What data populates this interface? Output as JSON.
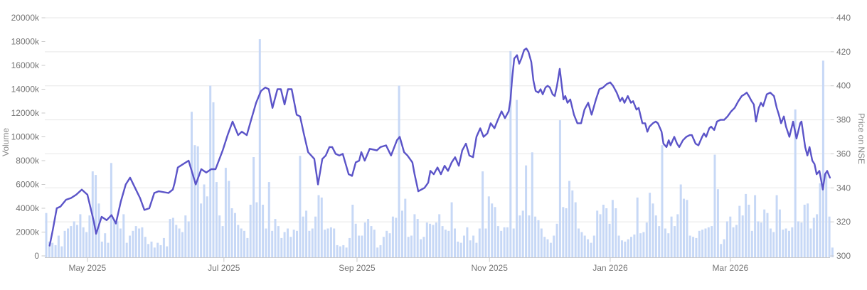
{
  "chart": {
    "colors": {
      "background": "#ffffff",
      "volume_bar": "#c7d8f6",
      "price_line": "#5b54c8",
      "grid": "#e7e7e7",
      "axis_line": "#c9c9c9",
      "tick_text": "#757575",
      "axis_title_text": "#8a8a8a"
    },
    "left_axis": {
      "title": "Volume",
      "tick_labels": [
        "0",
        "2000k",
        "4000k",
        "6000k",
        "8000k",
        "10000k",
        "12000k",
        "14000k",
        "16000k",
        "18000k",
        "20000k"
      ],
      "tick_values": [
        0,
        2000,
        4000,
        6000,
        8000,
        10000,
        12000,
        14000,
        16000,
        18000,
        20000
      ],
      "min": 0,
      "max": 20000
    },
    "right_axis": {
      "title": "Price on NSE",
      "tick_labels": [
        "300",
        "320",
        "340",
        "360",
        "380",
        "400",
        "420",
        "440"
      ],
      "tick_values": [
        300,
        320,
        340,
        360,
        380,
        400,
        420,
        440
      ],
      "min": 300,
      "max": 440
    },
    "x_axis": {
      "tick_labels": [
        "May 2025",
        "Jul 2025",
        "Sep 2025",
        "Nov 2025",
        "Jan 2026",
        "Mar 2026"
      ],
      "tick_positions": [
        13.3,
        57.4,
        100.4,
        143.2,
        182.2,
        221.0
      ]
    }
  },
  "chart_data": {
    "type": "bar+line",
    "x_unit": "trading-day index",
    "x_range_labels": [
      "May 2025",
      "Jul 2025",
      "Sep 2025",
      "Nov 2025",
      "Jan 2026",
      "Mar 2026"
    ],
    "series": [
      {
        "name": "Volume",
        "type": "bar",
        "axis": "left",
        "unit": "k",
        "values": [
          3600,
          1200,
          1100,
          900,
          1700,
          800,
          2100,
          2300,
          2500,
          2900,
          2600,
          3500,
          2400,
          2000,
          3400,
          7100,
          6800,
          4400,
          1200,
          1900,
          1100,
          7800,
          3100,
          2900,
          2300,
          3500,
          1100,
          1700,
          2100,
          2500,
          2300,
          2400,
          1600,
          1000,
          1200,
          700,
          1100,
          900,
          1500,
          800,
          3100,
          3200,
          2600,
          2300,
          2000,
          3400,
          2900,
          12100,
          9300,
          9200,
          4400,
          6000,
          5000,
          14300,
          12900,
          6200,
          3400,
          2500,
          7400,
          6300,
          4000,
          3600,
          2600,
          2300,
          2100,
          1500,
          4300,
          8300,
          4500,
          18200,
          4300,
          2300,
          6200,
          2100,
          3100,
          2500,
          1500,
          2000,
          2300,
          1600,
          2200,
          2100,
          8400,
          3300,
          3800,
          2100,
          2300,
          3300,
          5100,
          4900,
          2200,
          2300,
          2400,
          2300,
          900,
          800,
          900,
          700,
          1500,
          4300,
          2700,
          1700,
          1700,
          2800,
          3100,
          2500,
          2200,
          700,
          900,
          1600,
          2100,
          1900,
          3300,
          3200,
          14300,
          3800,
          4800,
          1600,
          1700,
          3500,
          3100,
          1400,
          1600,
          2800,
          2700,
          2600,
          2800,
          3500,
          2500,
          2200,
          2100,
          4500,
          2300,
          1200,
          1100,
          1700,
          2400,
          1300,
          1700,
          1100,
          2300,
          7100,
          2300,
          5000,
          4400,
          4100,
          2500,
          2100,
          2400,
          2400,
          17200,
          2300,
          13100,
          3400,
          3800,
          7600,
          3400,
          8700,
          3300,
          3000,
          2300,
          1600,
          1400,
          1100,
          1700,
          2700,
          11400,
          4100,
          4000,
          6300,
          5500,
          4500,
          2300,
          2000,
          1700,
          1400,
          1100,
          1700,
          3800,
          3500,
          4300,
          4000,
          2700,
          4700,
          4000,
          1700,
          1300,
          1200,
          1400,
          1600,
          1800,
          4900,
          1900,
          2000,
          2800,
          5300,
          4400,
          3400,
          2500,
          9300,
          2300,
          1900,
          3300,
          2500,
          3500,
          6000,
          4800,
          4700,
          1700,
          1600,
          1500,
          2100,
          2200,
          2300,
          2400,
          2500,
          8500,
          5600,
          1000,
          1400,
          2900,
          3300,
          2400,
          2600,
          4200,
          3400,
          5200,
          4300,
          2100,
          5100,
          2900,
          2800,
          3900,
          3600,
          2300,
          2000,
          5100,
          3900,
          2200,
          2300,
          2100,
          2400,
          12300,
          2900,
          2800,
          4300,
          4400,
          2300,
          3200,
          3500,
          6100,
          16400,
          6900,
          3300,
          700
        ]
      },
      {
        "name": "Price on NSE",
        "type": "line",
        "axis": "right",
        "points": [
          [
            1.1,
            306
          ],
          [
            2.1,
            315
          ],
          [
            3.4,
            328
          ],
          [
            4.6,
            329
          ],
          [
            6.4,
            333
          ],
          [
            8.0,
            334
          ],
          [
            9.7,
            336
          ],
          [
            11.5,
            339
          ],
          [
            13.3,
            336
          ],
          [
            15.4,
            320
          ],
          [
            16.1,
            313
          ],
          [
            17.9,
            323
          ],
          [
            19.5,
            321
          ],
          [
            21.1,
            324
          ],
          [
            22.5,
            319
          ],
          [
            24.1,
            332
          ],
          [
            25.7,
            342
          ],
          [
            27.1,
            346
          ],
          [
            28.7,
            340
          ],
          [
            30.3,
            334
          ],
          [
            31.7,
            327
          ],
          [
            33.3,
            328
          ],
          [
            34.9,
            337
          ],
          [
            36.3,
            338
          ],
          [
            39.5,
            337
          ],
          [
            40.9,
            339
          ],
          [
            41.5,
            343
          ],
          [
            42.5,
            352
          ],
          [
            46.0,
            356
          ],
          [
            48.3,
            342
          ],
          [
            50.1,
            351
          ],
          [
            51.7,
            349
          ],
          [
            53.3,
            351
          ],
          [
            54.7,
            351
          ],
          [
            57.0,
            362
          ],
          [
            58.6,
            371
          ],
          [
            60.2,
            379
          ],
          [
            62.0,
            371
          ],
          [
            63.2,
            373
          ],
          [
            64.8,
            371
          ],
          [
            66.2,
            380
          ],
          [
            67.8,
            390
          ],
          [
            69.4,
            397
          ],
          [
            70.8,
            399
          ],
          [
            71.9,
            398
          ],
          [
            73.1,
            387
          ],
          [
            74.7,
            398
          ],
          [
            75.8,
            398
          ],
          [
            77.0,
            389
          ],
          [
            78.1,
            398
          ],
          [
            79.3,
            398
          ],
          [
            80.9,
            383
          ],
          [
            82.0,
            382
          ],
          [
            83.2,
            372
          ],
          [
            84.6,
            361
          ],
          [
            86.6,
            357
          ],
          [
            87.8,
            342
          ],
          [
            89.2,
            357
          ],
          [
            90.3,
            359
          ],
          [
            91.5,
            364
          ],
          [
            92.4,
            364
          ],
          [
            93.5,
            360
          ],
          [
            94.7,
            359
          ],
          [
            95.8,
            360
          ],
          [
            97.7,
            348
          ],
          [
            98.8,
            347
          ],
          [
            100.0,
            355
          ],
          [
            101.1,
            356
          ],
          [
            101.8,
            361
          ],
          [
            102.9,
            356
          ],
          [
            104.5,
            363
          ],
          [
            106.8,
            362
          ],
          [
            108.0,
            364
          ],
          [
            109.8,
            365
          ],
          [
            111.4,
            359
          ],
          [
            113.3,
            368
          ],
          [
            114.2,
            370
          ],
          [
            115.6,
            361
          ],
          [
            116.7,
            359
          ],
          [
            118.3,
            355
          ],
          [
            119.0,
            348
          ],
          [
            120.2,
            338
          ],
          [
            122.2,
            340
          ],
          [
            123.4,
            343
          ],
          [
            124.1,
            350
          ],
          [
            125.2,
            348
          ],
          [
            126.4,
            352
          ],
          [
            127.5,
            348
          ],
          [
            128.7,
            353
          ],
          [
            129.8,
            350
          ],
          [
            131.0,
            355
          ],
          [
            132.1,
            358
          ],
          [
            133.3,
            353
          ],
          [
            134.4,
            362
          ],
          [
            135.6,
            366
          ],
          [
            136.7,
            359
          ],
          [
            137.9,
            358
          ],
          [
            139.0,
            370
          ],
          [
            140.2,
            375
          ],
          [
            141.3,
            370
          ],
          [
            142.5,
            372
          ],
          [
            143.6,
            378
          ],
          [
            144.8,
            375
          ],
          [
            145.9,
            380
          ],
          [
            147.1,
            385
          ],
          [
            148.2,
            381
          ],
          [
            149.4,
            385
          ],
          [
            150.0,
            392
          ],
          [
            150.5,
            404
          ],
          [
            151.2,
            416
          ],
          [
            152.1,
            418
          ],
          [
            152.8,
            413
          ],
          [
            153.5,
            416
          ],
          [
            154.4,
            421
          ],
          [
            155.1,
            422
          ],
          [
            155.8,
            420
          ],
          [
            156.7,
            414
          ],
          [
            157.4,
            403
          ],
          [
            158.1,
            397
          ],
          [
            159.0,
            396
          ],
          [
            159.7,
            398
          ],
          [
            160.4,
            395
          ],
          [
            161.3,
            399
          ],
          [
            162.0,
            400
          ],
          [
            162.7,
            399
          ],
          [
            163.6,
            395
          ],
          [
            164.3,
            394
          ],
          [
            165.0,
            400
          ],
          [
            165.9,
            410
          ],
          [
            167.1,
            392
          ],
          [
            167.7,
            394
          ],
          [
            168.4,
            390
          ],
          [
            169.3,
            392
          ],
          [
            170.5,
            383
          ],
          [
            171.6,
            378
          ],
          [
            172.8,
            378
          ],
          [
            173.9,
            386
          ],
          [
            175.1,
            390
          ],
          [
            176.2,
            383
          ],
          [
            177.6,
            392
          ],
          [
            178.7,
            398
          ],
          [
            179.9,
            399
          ],
          [
            181.1,
            401
          ],
          [
            182.2,
            402
          ],
          [
            183.1,
            400
          ],
          [
            184.3,
            396
          ],
          [
            185.4,
            391
          ],
          [
            186.1,
            393
          ],
          [
            186.8,
            390
          ],
          [
            187.9,
            394
          ],
          [
            188.9,
            390
          ],
          [
            189.6,
            391
          ],
          [
            190.7,
            386
          ],
          [
            191.4,
            387
          ],
          [
            192.6,
            378
          ],
          [
            193.5,
            378
          ],
          [
            194.2,
            373
          ],
          [
            194.9,
            376
          ],
          [
            196.0,
            378
          ],
          [
            196.9,
            379
          ],
          [
            197.6,
            378
          ],
          [
            198.8,
            373
          ],
          [
            199.4,
            366
          ],
          [
            200.4,
            364
          ],
          [
            201.1,
            368
          ],
          [
            201.7,
            365
          ],
          [
            202.9,
            370
          ],
          [
            203.8,
            366
          ],
          [
            204.5,
            364
          ],
          [
            205.7,
            368
          ],
          [
            206.8,
            370
          ],
          [
            207.9,
            371
          ],
          [
            208.6,
            371
          ],
          [
            209.8,
            366
          ],
          [
            210.7,
            365
          ],
          [
            211.9,
            370
          ],
          [
            212.5,
            372
          ],
          [
            213.2,
            370
          ],
          [
            214.2,
            375
          ],
          [
            214.8,
            376
          ],
          [
            215.8,
            374
          ],
          [
            216.7,
            379
          ],
          [
            217.8,
            380
          ],
          [
            219.0,
            380
          ],
          [
            220.1,
            382
          ],
          [
            221.3,
            385
          ],
          [
            222.4,
            387
          ],
          [
            223.6,
            391
          ],
          [
            224.7,
            394
          ],
          [
            225.6,
            395
          ],
          [
            226.3,
            396
          ],
          [
            227.0,
            394
          ],
          [
            227.9,
            391
          ],
          [
            228.6,
            389
          ],
          [
            229.3,
            379
          ],
          [
            230.2,
            387
          ],
          [
            230.9,
            390
          ],
          [
            231.6,
            388
          ],
          [
            232.8,
            395
          ],
          [
            233.9,
            396
          ],
          [
            235.1,
            394
          ],
          [
            236.0,
            387
          ],
          [
            236.7,
            383
          ],
          [
            237.4,
            378
          ],
          [
            238.3,
            382
          ],
          [
            239.0,
            376
          ],
          [
            240.1,
            370
          ],
          [
            241.3,
            379
          ],
          [
            242.4,
            369
          ],
          [
            243.6,
            378
          ],
          [
            244.0,
            379
          ],
          [
            245.2,
            364
          ],
          [
            245.9,
            359
          ],
          [
            246.6,
            364
          ],
          [
            247.5,
            356
          ],
          [
            248.2,
            354
          ],
          [
            248.9,
            348
          ],
          [
            249.8,
            350
          ],
          [
            250.5,
            343
          ],
          [
            250.9,
            339
          ],
          [
            251.6,
            348
          ],
          [
            252.3,
            350
          ],
          [
            253.2,
            346
          ]
        ]
      }
    ]
  }
}
